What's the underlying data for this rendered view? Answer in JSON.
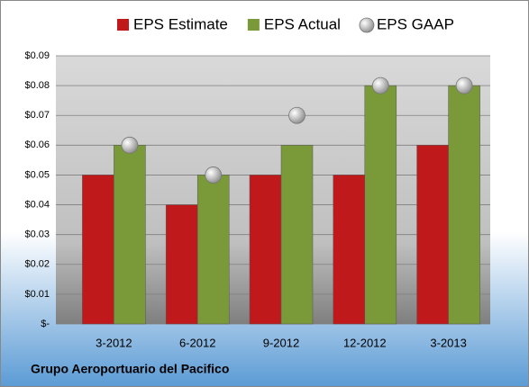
{
  "chart_data": {
    "type": "bar",
    "categories": [
      "3-2012",
      "6-2012",
      "9-2012",
      "12-2012",
      "3-2013"
    ],
    "series": [
      {
        "name": "EPS Estimate",
        "color": "#c0191c",
        "mark": "bar",
        "values": [
          0.05,
          0.04,
          0.05,
          0.05,
          0.06
        ]
      },
      {
        "name": "EPS Actual",
        "color": "#7a9a3a",
        "mark": "bar",
        "values": [
          0.06,
          0.05,
          0.06,
          0.08,
          0.08
        ]
      },
      {
        "name": "EPS GAAP",
        "color": "#a6a6a6",
        "mark": "circle",
        "values": [
          0.06,
          0.05,
          0.07,
          0.08,
          0.08
        ]
      }
    ],
    "ylim": [
      0,
      0.09
    ],
    "yticks": [
      {
        "value": 0,
        "label": "$-"
      },
      {
        "value": 0.01,
        "label": "$0.01"
      },
      {
        "value": 0.02,
        "label": "$0.02"
      },
      {
        "value": 0.03,
        "label": "$0.03"
      },
      {
        "value": 0.04,
        "label": "$0.04"
      },
      {
        "value": 0.05,
        "label": "$0.05"
      },
      {
        "value": 0.06,
        "label": "$0.06"
      },
      {
        "value": 0.07,
        "label": "$0.07"
      },
      {
        "value": 0.08,
        "label": "$0.08"
      },
      {
        "value": 0.09,
        "label": "$0.09"
      }
    ],
    "grid": true,
    "legend": "top",
    "annotation": "Grupo Aeroportuario del Pacifico"
  }
}
